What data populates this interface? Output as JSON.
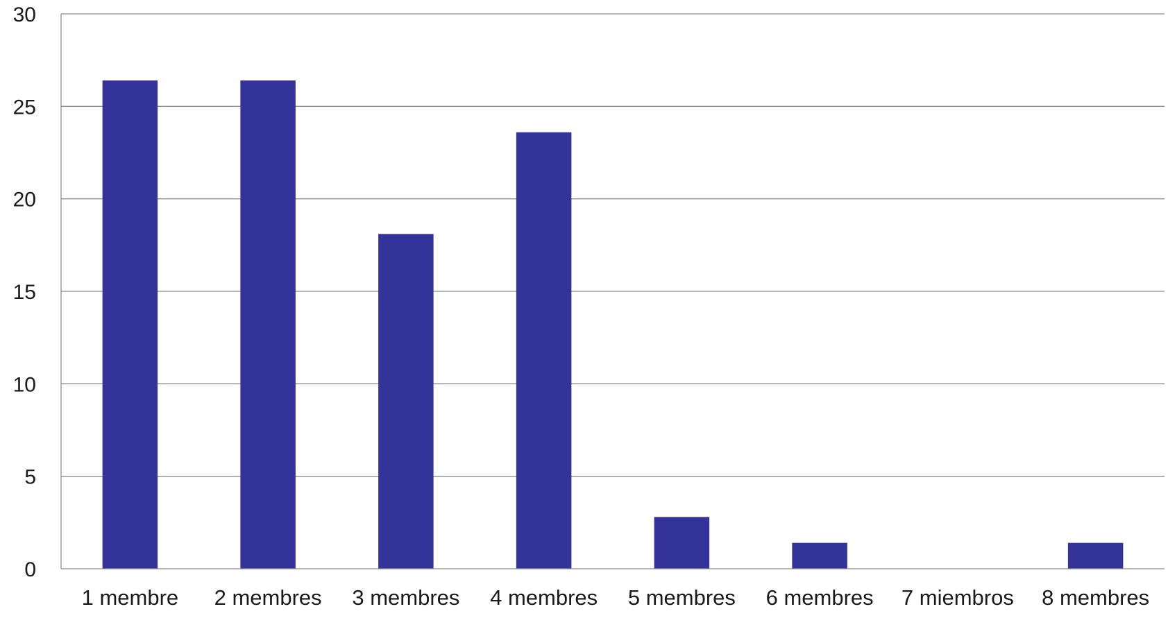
{
  "chart_data": {
    "type": "bar",
    "title": "",
    "xlabel": "",
    "ylabel": "",
    "categories": [
      "1 membre",
      "2 membres",
      "3 membres",
      "4 membres",
      "5 membres",
      "6 membres",
      "7 miembros",
      "8 membres"
    ],
    "values": [
      26.4,
      26.4,
      18.1,
      23.6,
      2.8,
      1.4,
      0,
      1.4
    ],
    "ylim": [
      0,
      30
    ],
    "yticks": [
      0,
      5,
      10,
      15,
      20,
      25,
      30
    ],
    "grid": true,
    "legend": "none",
    "bar_color": "#333399"
  }
}
